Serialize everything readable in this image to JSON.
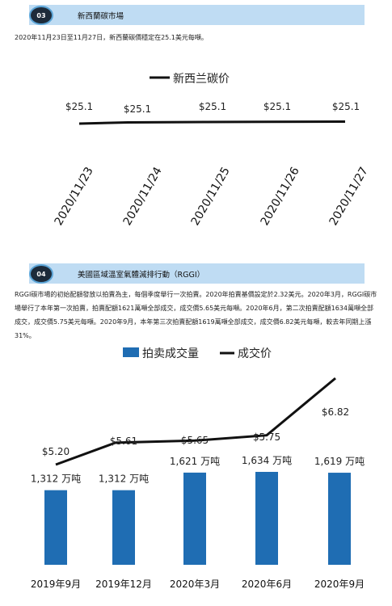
{
  "section1": {
    "badge": "03",
    "title": "新西蘭碳市場",
    "text": "2020年11月23日至11月27日，新西蘭碳價穩定在25.1美元每噸。"
  },
  "section2": {
    "badge": "04",
    "title": "美國區域溫室氣體減排行動（RGGI）",
    "text": "RGGI碳市場的初始配額發放以拍賣為主，每個季度舉行一次拍賣。2020年拍賣基價設定於2.32美元。2020年3月，RGGI碳市場舉行了本年第一次拍賣，拍賣配額1621萬噸全部成交，成交價5.65美元每噸。2020年6月，第二次拍賣配額1634萬噸全部成交，成交價5.75美元每噸。2020年9月，本年第三次拍賣配額1619萬噸全部成交，成交價6.82美元每噸，較去年同期上漲31%。"
  },
  "chart_data": [
    {
      "type": "line",
      "x": [
        "2020/11/23",
        "2020/11/24",
        "2020/11/25",
        "2020/11/26",
        "2020/11/27"
      ],
      "series": [
        {
          "name": "新西兰碳价",
          "values": [
            25.1,
            25.1,
            25.1,
            25.1,
            25.1
          ],
          "labels": [
            "$25.1",
            "$25.1",
            "$25.1",
            "$25.1",
            "$25.1"
          ],
          "color": "#111111"
        }
      ],
      "legend": "top-center",
      "grid": false
    },
    {
      "type": "bar",
      "categories": [
        "2019年9月",
        "2019年12月",
        "2020年3月",
        "2020年6月",
        "2020年9月"
      ],
      "series": [
        {
          "name": "拍卖成交量",
          "kind": "bar",
          "values": [
            1312,
            1312,
            1621,
            1634,
            1619
          ],
          "labels": [
            "1,312 万吨",
            "1,312 万吨",
            "1,621 万吨",
            "1,634 万吨",
            "1,619 万吨"
          ],
          "color": "#1f6db3"
        },
        {
          "name": "成交价",
          "kind": "line",
          "values": [
            5.2,
            5.61,
            5.65,
            5.75,
            6.82
          ],
          "labels": [
            "$5.20",
            "$5.61",
            "$5.65",
            "$5.75",
            "$6.82"
          ],
          "color": "#111111"
        }
      ],
      "legend": "top-center",
      "grid": false
    }
  ]
}
